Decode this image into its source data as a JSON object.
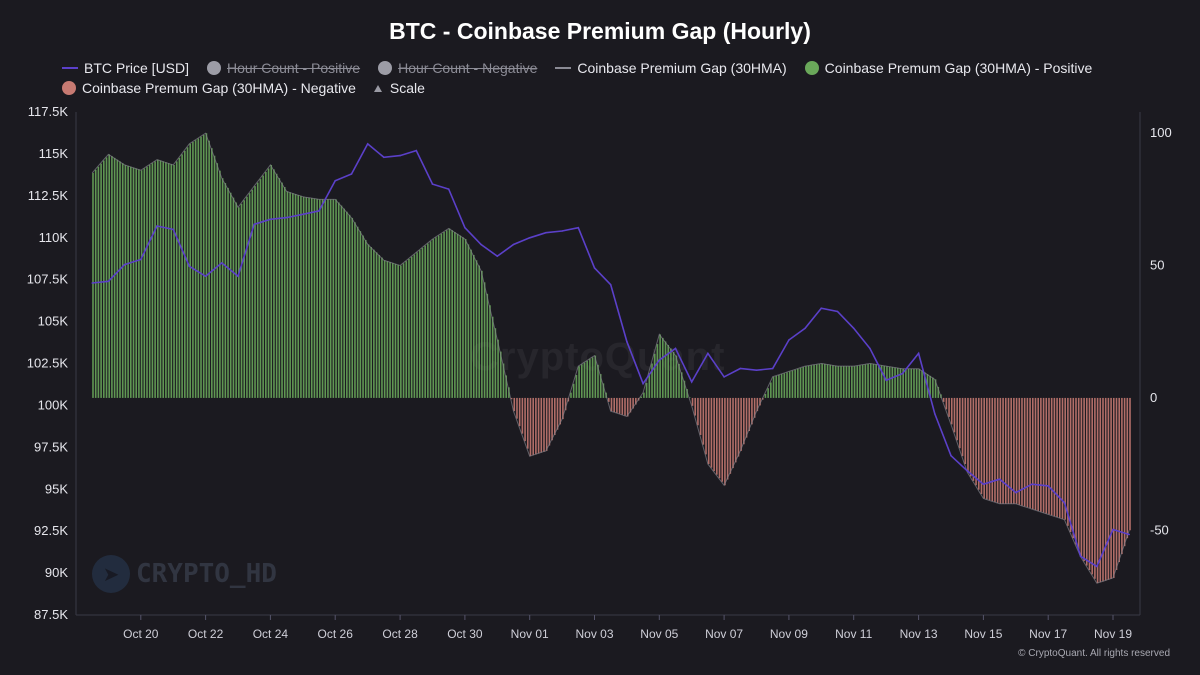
{
  "title": "BTC - Coinbase Premium Gap (Hourly)",
  "legend": [
    {
      "label": "BTC Price [USD]",
      "swatch": "line",
      "color": "#5b40c9",
      "disabled": false
    },
    {
      "label": "Hour Count - Positive",
      "swatch": "dot",
      "color": "#9c9ca6",
      "disabled": true
    },
    {
      "label": "Hour Count - Negative",
      "swatch": "dot",
      "color": "#9c9ca6",
      "disabled": true
    },
    {
      "label": "Coinbase Premium Gap (30HMA)",
      "swatch": "line",
      "color": "#8a8a94",
      "disabled": false
    },
    {
      "label": "Coinbase Premum Gap (30HMA) - Positive",
      "swatch": "dot",
      "color": "#6aa85a",
      "disabled": false
    },
    {
      "label": "Coinbase Premum Gap (30HMA) - Negative",
      "swatch": "dot",
      "color": "#c77a72",
      "disabled": false
    },
    {
      "label": "Scale",
      "swatch": "tri",
      "color": "#9a9aa4",
      "disabled": false
    }
  ],
  "watermark": "CRYPTO_HD",
  "background_watermark": "CryptoQuant",
  "credit": "© CryptoQuant. All rights reserved",
  "chart_data": {
    "type": "line",
    "title": "BTC - Coinbase Premium Gap (Hourly)",
    "x_range": [
      "2025-10-18",
      "2025-11-19 20:00"
    ],
    "x_ticks": [
      "Oct 20",
      "Oct 22",
      "Oct 24",
      "Oct 26",
      "Oct 28",
      "Oct 30",
      "Nov 01",
      "Nov 03",
      "Nov 05",
      "Nov 07",
      "Nov 09",
      "Nov 11",
      "Nov 13",
      "Nov 15",
      "Nov 17",
      "Nov 19"
    ],
    "y_left": {
      "label": "",
      "range": [
        87500,
        117500
      ],
      "ticks": [
        "117.5K",
        "115K",
        "112.5K",
        "110K",
        "107.5K",
        "105K",
        "102.5K",
        "100K",
        "97.5K",
        "95K",
        "92.5K",
        "90K",
        "87.5K"
      ],
      "tick_values": [
        117500,
        115000,
        112500,
        110000,
        107500,
        105000,
        102500,
        100000,
        97500,
        95000,
        92500,
        90000,
        87500
      ]
    },
    "y_right": {
      "label": "",
      "range": [
        -82,
        108
      ],
      "ticks": [
        "100",
        "50",
        "0",
        "-50"
      ],
      "tick_values": [
        100,
        50,
        0,
        -50
      ]
    },
    "grid": false,
    "legend_position": "top",
    "series": [
      {
        "name": "BTC Price [USD]",
        "axis": "left",
        "color": "#5b40c9",
        "x": [
          "10/18 12:00",
          "10/19",
          "10/19 12:00",
          "10/20",
          "10/20 12:00",
          "10/21",
          "10/21 12:00",
          "10/22",
          "10/22 12:00",
          "10/23",
          "10/23 12:00",
          "10/24",
          "10/24 12:00",
          "10/25",
          "10/25 12:00",
          "10/26",
          "10/26 12:00",
          "10/27",
          "10/27 12:00",
          "10/28",
          "10/28 12:00",
          "10/29",
          "10/29 12:00",
          "10/30",
          "10/30 12:00",
          "10/31",
          "10/31 12:00",
          "11/01",
          "11/01 12:00",
          "11/02",
          "11/02 12:00",
          "11/03",
          "11/03 12:00",
          "11/04",
          "11/04 12:00",
          "11/05",
          "11/05 12:00",
          "11/06",
          "11/06 12:00",
          "11/07",
          "11/07 12:00",
          "11/08",
          "11/08 12:00",
          "11/09",
          "11/09 12:00",
          "11/10",
          "11/10 12:00",
          "11/11",
          "11/11 12:00",
          "11/12",
          "11/12 12:00",
          "11/13",
          "11/13 12:00",
          "11/14",
          "11/14 12:00",
          "11/15",
          "11/15 12:00",
          "11/16",
          "11/16 12:00",
          "11/17",
          "11/17 12:00",
          "11/18",
          "11/18 12:00",
          "11/19",
          "11/19 12:00"
        ],
        "values": [
          107300,
          107400,
          108400,
          108700,
          110700,
          110500,
          108300,
          107700,
          108500,
          107700,
          110800,
          111100,
          111200,
          111400,
          111600,
          113400,
          113800,
          115600,
          114800,
          114900,
          115200,
          113200,
          112900,
          110600,
          109600,
          108900,
          109600,
          110000,
          110300,
          110400,
          110600,
          108200,
          107200,
          103800,
          101300,
          102700,
          103400,
          101400,
          103100,
          101700,
          102200,
          102100,
          102200,
          103900,
          104600,
          105800,
          105600,
          104600,
          103400,
          101500,
          101900,
          103100,
          99500,
          97000,
          96100,
          95300,
          95600,
          94800,
          95300,
          95200,
          94200,
          91000,
          90400,
          92600,
          92300
        ]
      },
      {
        "name": "Coinbase Premium Gap (30HMA)",
        "axis": "right",
        "positive_color": "#6aa85a",
        "negative_color": "#c77a72",
        "x": [
          "10/18 12:00",
          "10/19",
          "10/19 12:00",
          "10/20",
          "10/20 12:00",
          "10/21",
          "10/21 12:00",
          "10/22",
          "10/22 12:00",
          "10/23",
          "10/23 12:00",
          "10/24",
          "10/24 12:00",
          "10/25",
          "10/25 12:00",
          "10/26",
          "10/26 12:00",
          "10/27",
          "10/27 12:00",
          "10/28",
          "10/28 12:00",
          "10/29",
          "10/29 12:00",
          "10/30",
          "10/30 12:00",
          "10/31",
          "10/31 12:00",
          "11/01",
          "11/01 12:00",
          "11/02",
          "11/02 12:00",
          "11/03",
          "11/03 12:00",
          "11/04",
          "11/04 12:00",
          "11/05",
          "11/05 12:00",
          "11/06",
          "11/06 12:00",
          "11/07",
          "11/07 12:00",
          "11/08",
          "11/08 12:00",
          "11/09",
          "11/09 12:00",
          "11/10",
          "11/10 12:00",
          "11/11",
          "11/11 12:00",
          "11/12",
          "11/12 12:00",
          "11/13",
          "11/13 12:00",
          "11/14",
          "11/14 12:00",
          "11/15",
          "11/15 12:00",
          "11/16",
          "11/16 12:00",
          "11/17",
          "11/17 12:00",
          "11/18",
          "11/18 12:00",
          "11/19",
          "11/19 12:00"
        ],
        "values": [
          85,
          92,
          88,
          86,
          90,
          88,
          96,
          100,
          83,
          72,
          80,
          88,
          78,
          76,
          75,
          75,
          68,
          58,
          52,
          50,
          55,
          60,
          64,
          60,
          48,
          22,
          -5,
          -22,
          -20,
          -8,
          12,
          16,
          -5,
          -7,
          2,
          24,
          16,
          -3,
          -25,
          -33,
          -20,
          -5,
          8,
          10,
          12,
          13,
          12,
          12,
          13,
          12,
          11,
          11,
          7,
          -10,
          -28,
          -38,
          -40,
          -40,
          -42,
          -44,
          -46,
          -60,
          -70,
          -68,
          -50
        ]
      }
    ]
  }
}
